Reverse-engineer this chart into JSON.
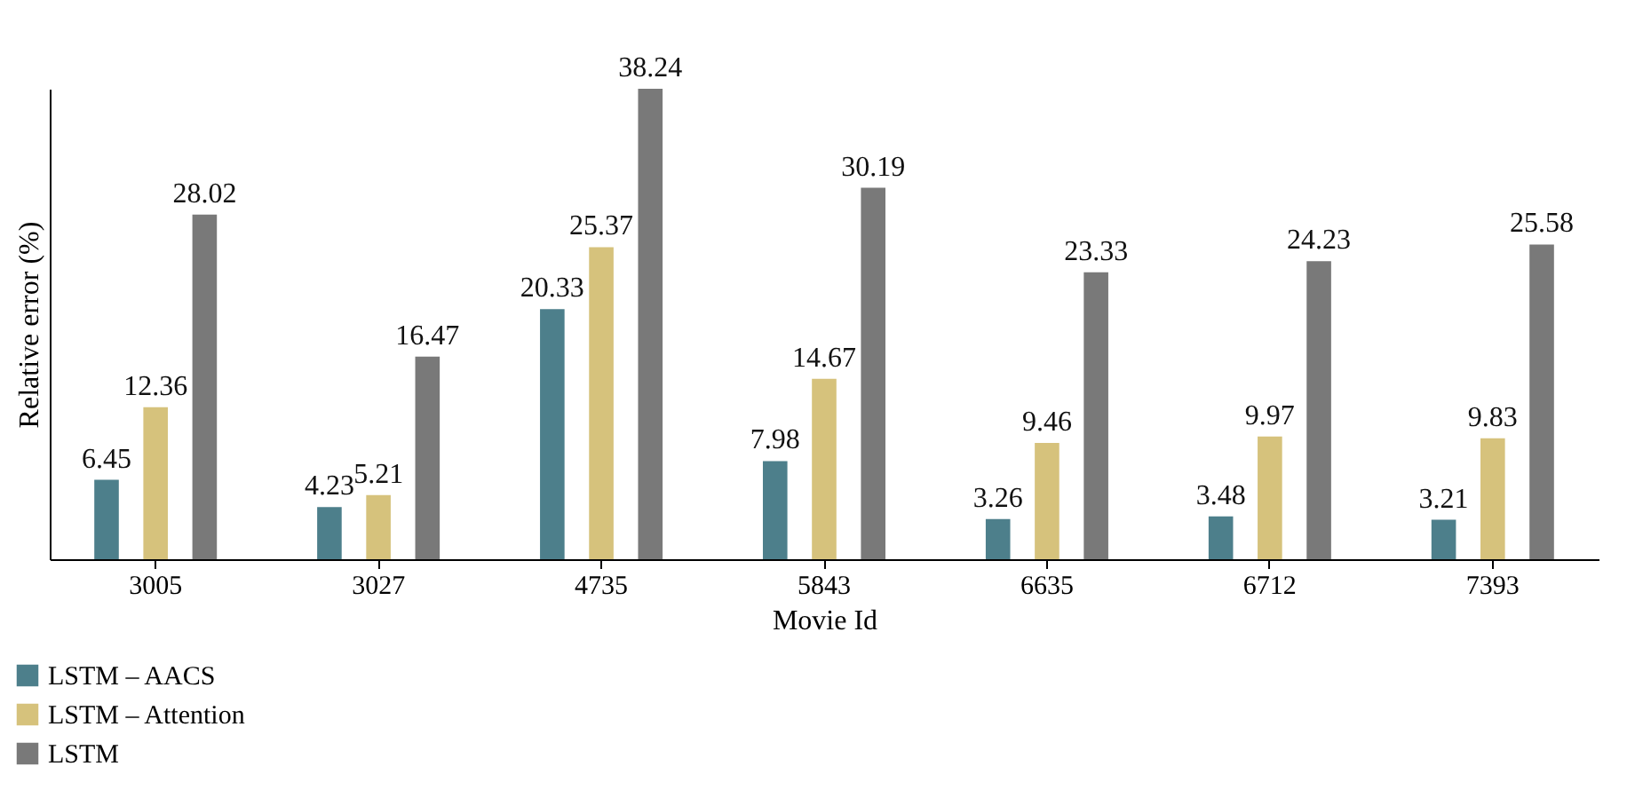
{
  "chart_data": {
    "type": "bar",
    "xlabel": "Movie Id",
    "ylabel": "Relative error (%)",
    "categories": [
      "3005",
      "3027",
      "4735",
      "5843",
      "6635",
      "6712",
      "7393"
    ],
    "series": [
      {
        "name": "LSTM – AACS",
        "color": "#4d7f8b",
        "values": [
          6.45,
          4.23,
          20.33,
          7.98,
          3.26,
          3.48,
          3.21
        ]
      },
      {
        "name": "LSTM – Attention",
        "color": "#d6c27c",
        "values": [
          12.36,
          5.21,
          25.37,
          14.67,
          9.46,
          9.97,
          9.83
        ]
      },
      {
        "name": "LSTM",
        "color": "#797979",
        "values": [
          28.02,
          16.47,
          38.24,
          30.19,
          23.33,
          24.23,
          25.58
        ]
      }
    ],
    "data_labels": true,
    "tick_labels": "x",
    "grid": false,
    "legend": "bottom left"
  }
}
